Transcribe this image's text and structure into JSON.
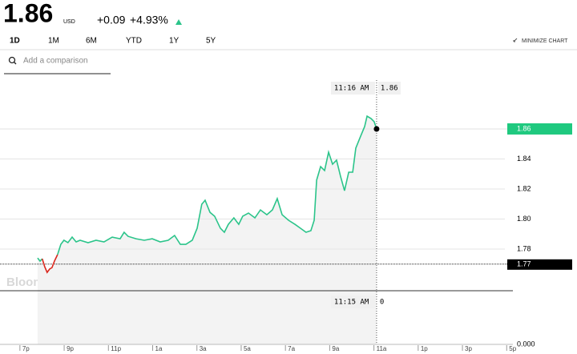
{
  "header": {
    "price": "1.86",
    "currency": "USD",
    "change": "+0.09",
    "change_pct": "+4.93%"
  },
  "tabs": [
    "1D",
    "1M",
    "6M",
    "YTD",
    "1Y",
    "5Y"
  ],
  "minimize": "MINIMIZE CHART",
  "search_placeholder": "Add a comparison",
  "chart_data": {
    "type": "line",
    "x": [
      0.8,
      0.91,
      1.01,
      1.12,
      1.23,
      1.34,
      1.45,
      1.56,
      1.7,
      1.85,
      1.99,
      2.17,
      2.36,
      2.54,
      2.72,
      3.08,
      3.44,
      3.8,
      4.17,
      4.53,
      4.71,
      4.89,
      5.25,
      5.62,
      5.98,
      6.34,
      6.7,
      6.99,
      7.25,
      7.5,
      7.79,
      8.01,
      8.22,
      8.37,
      8.59,
      8.8,
      9.06,
      9.24,
      9.42,
      9.67,
      9.89,
      10.07,
      10.33,
      10.62,
      10.87,
      11.16,
      11.41,
      11.63,
      11.85,
      12.14,
      12.43,
      12.68,
      12.93,
      13.15,
      13.3,
      13.41,
      13.59,
      13.77,
      13.95,
      14.13,
      14.31,
      14.49,
      14.67,
      14.86,
      15.04,
      15.18,
      15.4,
      15.58,
      15.69,
      15.87,
      16.01,
      16.12
    ],
    "series": [
      {
        "color": "#2bc48a",
        "values": [
          1.7741,
          1.772,
          1.7736,
          null,
          null,
          null,
          null,
          null,
          1.7763,
          1.7832,
          1.7859,
          1.7843,
          1.788,
          1.7848,
          1.7859,
          1.7843,
          1.7859,
          1.7848,
          1.788,
          1.7869,
          1.7912,
          1.7885,
          1.7869,
          1.7859,
          1.7869,
          1.7848,
          1.7859,
          1.7891,
          1.7832,
          1.7832,
          1.7859,
          1.7939,
          1.8099,
          1.8125,
          1.8045,
          1.8019,
          1.7939,
          1.7912,
          1.7965,
          1.8008,
          1.7965,
          1.8019,
          1.804,
          1.8008,
          1.8061,
          1.8029,
          1.8061,
          1.8136,
          1.8029,
          1.7992,
          1.7965,
          1.7939,
          1.7912,
          1.7923,
          1.7992,
          1.8259,
          1.8349,
          1.8323,
          1.8445,
          1.8365,
          1.8392,
          1.8285,
          1.8189,
          1.8312,
          1.8312,
          1.8472,
          1.8552,
          1.8616,
          1.8685,
          1.8669,
          1.8648,
          1.86
        ]
      },
      {
        "color": "#d9261c",
        "values": [
          null,
          null,
          1.7736,
          1.7683,
          1.7645,
          1.7667,
          1.7677,
          1.772,
          1.7763,
          null,
          null,
          null,
          null,
          null,
          null,
          null,
          null,
          null,
          null,
          null,
          null,
          null,
          null,
          null,
          null,
          null,
          null,
          null,
          null,
          null,
          null,
          null,
          null,
          null,
          null,
          null,
          null,
          null,
          null,
          null,
          null,
          null,
          null,
          null,
          null,
          null,
          null,
          null,
          null,
          null,
          null,
          null,
          null,
          null,
          null,
          null,
          null,
          null,
          null,
          null,
          null,
          null,
          null,
          null,
          null,
          null,
          null,
          null,
          null,
          null,
          null,
          null
        ]
      }
    ],
    "xlim": [
      -0.9,
      22.28
    ],
    "xticks": [
      {
        "value": 0,
        "label": "7p"
      },
      {
        "value": 2,
        "label": "9p"
      },
      {
        "value": 4,
        "label": "11p"
      },
      {
        "value": 6,
        "label": "1a"
      },
      {
        "value": 8,
        "label": "3a"
      },
      {
        "value": 10,
        "label": "5a"
      },
      {
        "value": 12,
        "label": "7a"
      },
      {
        "value": 14,
        "label": "9a"
      },
      {
        "value": 16,
        "label": "11a"
      },
      {
        "value": 18,
        "label": "1p"
      },
      {
        "value": 20,
        "label": "3p"
      },
      {
        "value": 22,
        "label": "5p"
      }
    ],
    "ylim": [
      1.7619,
      1.8925
    ],
    "yticks": [
      1.78,
      {
        "value": 1.8,
        "label": "1.80"
      },
      1.82,
      1.84,
      1.86
    ],
    "grid": true,
    "last_price": 1.86,
    "last_color": "#1fc97f",
    "previous_close": 1.77,
    "crosshair": {
      "x": 16.12,
      "time_top": "11:16 AM",
      "price": 1.86,
      "time_bottom": "11:15 AM",
      "volume": 0
    },
    "volume_yticks": [
      {
        "value": 0,
        "label": "0.000"
      }
    ],
    "watermark": "BloombergMarkets"
  }
}
